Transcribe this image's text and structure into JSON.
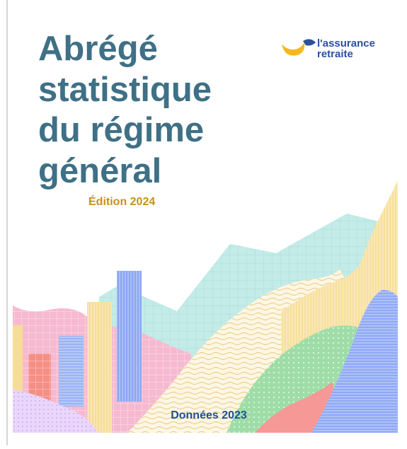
{
  "cover": {
    "title_lines": [
      "Abrégé",
      "statistique",
      "du régime",
      "général"
    ],
    "edition": "Édition 2024",
    "logo": {
      "line1": "l'assurance",
      "line2": "retraite"
    },
    "data_year": "Données 2023"
  }
}
